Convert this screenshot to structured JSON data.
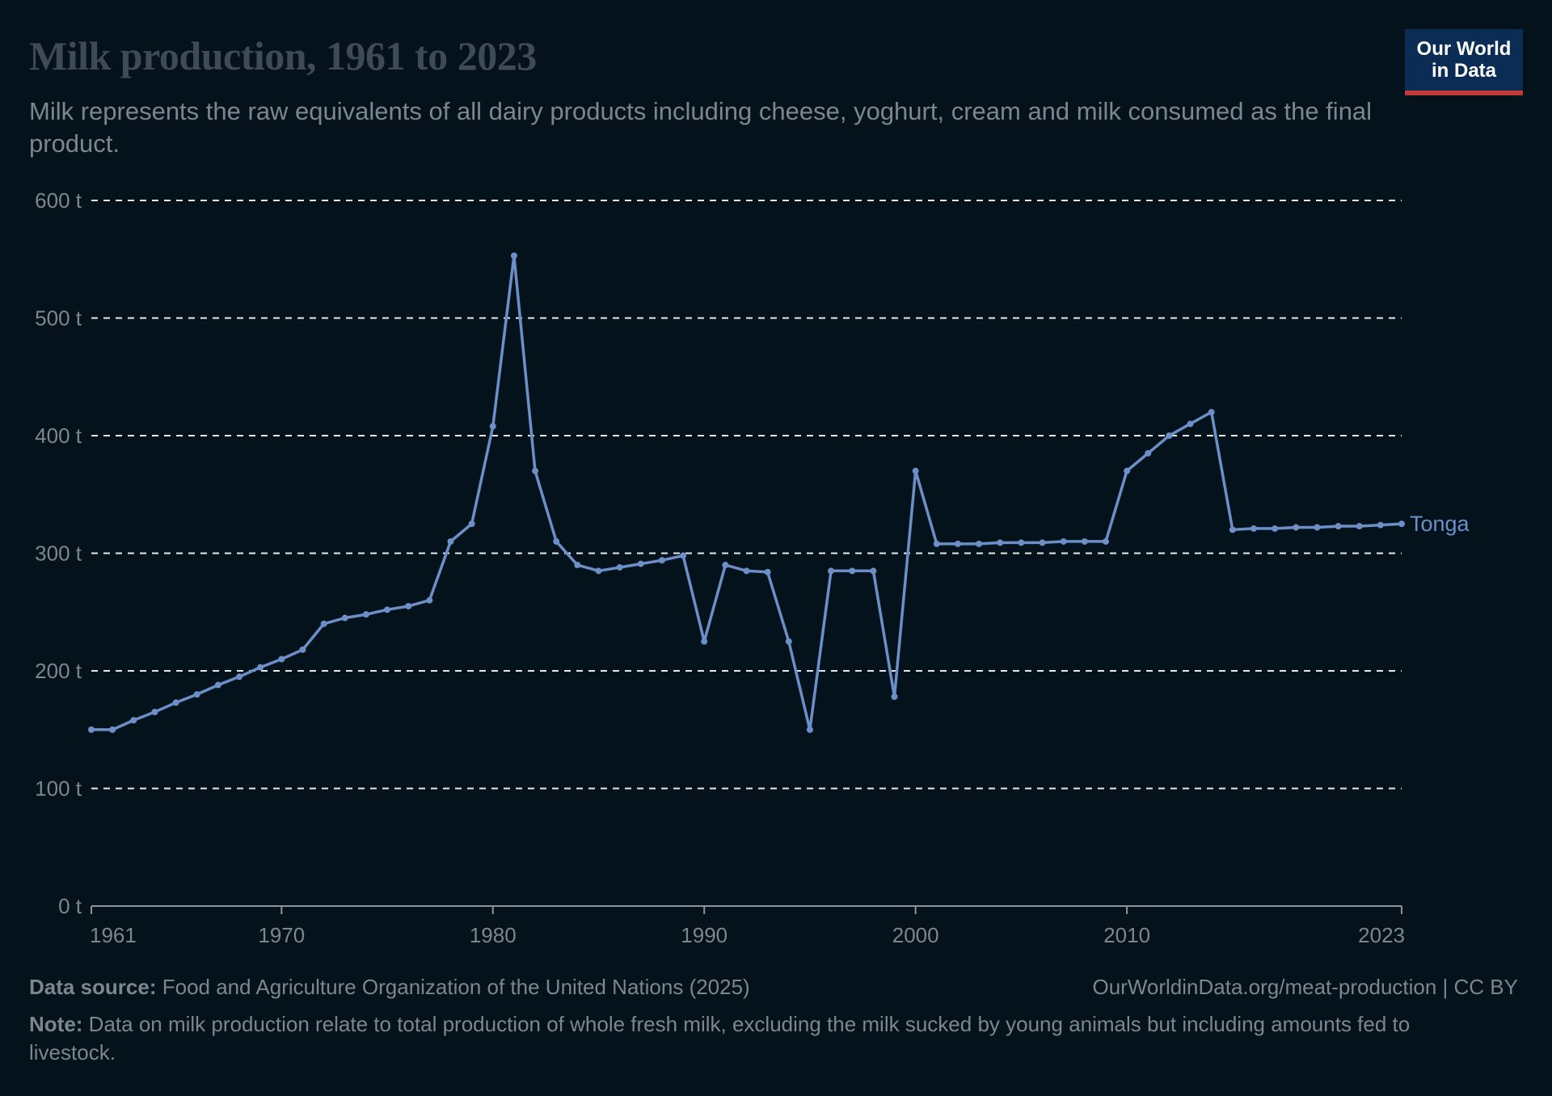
{
  "header": {
    "title": "Milk production, 1961 to 2023",
    "subtitle": "Milk represents the raw equivalents of all dairy products including cheese, yoghurt, cream and milk consumed as the final product.",
    "logo_line1": "Our World",
    "logo_line2": "in Data"
  },
  "footer": {
    "source_label": "Data source:",
    "source_text": "Food and Agriculture Organization of the United Nations (2025)",
    "url": "OurWorldinData.org/meat-production | CC BY",
    "note_label": "Note:",
    "note_text": "Data on milk production relate to total production of whole fresh milk, excluding the milk sucked by young animals but including amounts fed to livestock."
  },
  "colors": {
    "background": "#04121c",
    "series": "#6d8fc8",
    "grid": "#e8e8e8",
    "axis_text": "#7c8690"
  },
  "chart_data": {
    "type": "line",
    "title": "Milk production, 1961 to 2023",
    "xlabel": "",
    "ylabel": "",
    "xlim": [
      1961,
      2023
    ],
    "ylim": [
      0,
      600
    ],
    "x_ticks": [
      "1961",
      "1970",
      "1980",
      "1990",
      "2000",
      "2010",
      "2023"
    ],
    "x_tick_values": [
      1961,
      1970,
      1980,
      1990,
      2000,
      2010,
      2023
    ],
    "y_ticks": [
      "0 t",
      "100 t",
      "200 t",
      "300 t",
      "400 t",
      "500 t",
      "600 t"
    ],
    "y_tick_values": [
      0,
      100,
      200,
      300,
      400,
      500,
      600
    ],
    "grid": "horizontal dashed",
    "series": [
      {
        "name": "Tonga",
        "x": [
          1961,
          1962,
          1963,
          1964,
          1965,
          1966,
          1967,
          1968,
          1969,
          1970,
          1971,
          1972,
          1973,
          1974,
          1975,
          1976,
          1977,
          1978,
          1979,
          1980,
          1981,
          1982,
          1983,
          1984,
          1985,
          1986,
          1987,
          1988,
          1989,
          1990,
          1991,
          1992,
          1993,
          1994,
          1995,
          1996,
          1997,
          1998,
          1999,
          2000,
          2001,
          2002,
          2003,
          2004,
          2005,
          2006,
          2007,
          2008,
          2009,
          2010,
          2011,
          2012,
          2013,
          2014,
          2015,
          2016,
          2017,
          2018,
          2019,
          2020,
          2021,
          2022,
          2023
        ],
        "values": [
          150,
          150,
          158,
          165,
          173,
          180,
          188,
          195,
          203,
          210,
          218,
          240,
          245,
          248,
          252,
          255,
          260,
          310,
          325,
          408,
          553,
          370,
          310,
          290,
          285,
          288,
          291,
          294,
          298,
          225,
          290,
          285,
          284,
          225,
          150,
          285,
          285,
          285,
          178,
          370,
          308,
          308,
          308,
          309,
          309,
          309,
          310,
          310,
          310,
          370,
          385,
          400,
          410,
          420,
          320,
          321,
          321,
          322,
          322,
          323,
          323,
          324,
          325
        ]
      }
    ]
  }
}
